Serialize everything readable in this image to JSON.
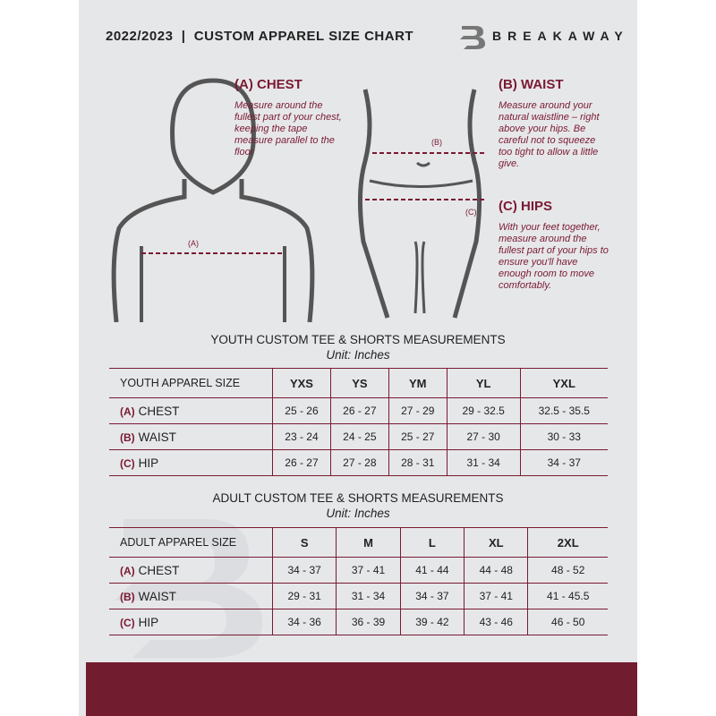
{
  "header": {
    "title": "2022/2023  |  CUSTOM APPAREL SIZE CHART",
    "brand": "BREAKAWAY"
  },
  "measures": {
    "chest": {
      "heading": "(A) CHEST",
      "text": "Measure around the fullest part of your chest, keeping the tape measure parallel to the floor",
      "marker": "(A)"
    },
    "waist": {
      "heading": "(B) WAIST",
      "text": "Measure around your natural waistline – right above your hips. Be careful not to squeeze too tight to allow a little give.",
      "marker": "(B)"
    },
    "hips": {
      "heading": "(C) HIPS",
      "text": "With your feet together, measure around the fullest part of your hips to ensure you'll have enough room to move comfortably.",
      "marker": "(C)"
    }
  },
  "youth": {
    "title": "YOUTH CUSTOM TEE & SHORTS MEASUREMENTS",
    "unit": "Unit: Inches",
    "header": "YOUTH APPAREL SIZE",
    "sizes": [
      "YXS",
      "YS",
      "YM",
      "YL",
      "YXL"
    ],
    "rows": [
      {
        "letter": "(A)",
        "name": "CHEST",
        "values": [
          "25 - 26",
          "26 - 27",
          "27 - 29",
          "29 - 32.5",
          "32.5 - 35.5"
        ]
      },
      {
        "letter": "(B)",
        "name": "WAIST",
        "values": [
          "23 - 24",
          "24 - 25",
          "25 - 27",
          "27 - 30",
          "30 - 33"
        ]
      },
      {
        "letter": "(C)",
        "name": "HIP",
        "values": [
          "26 - 27",
          "27 - 28",
          "28 - 31",
          "31 - 34",
          "34 - 37"
        ]
      }
    ]
  },
  "adult": {
    "title": "ADULT CUSTOM TEE & SHORTS MEASUREMENTS",
    "unit": "Unit: Inches",
    "header": "ADULT APPAREL SIZE",
    "sizes": [
      "S",
      "M",
      "L",
      "XL",
      "2XL"
    ],
    "rows": [
      {
        "letter": "(A)",
        "name": "CHEST",
        "values": [
          "34 - 37",
          "37 - 41",
          "41 - 44",
          "44 - 48",
          "48 - 52"
        ]
      },
      {
        "letter": "(B)",
        "name": "WAIST",
        "values": [
          "29 - 31",
          "31 - 34",
          "34 - 37",
          "37 - 41",
          "41 - 45.5"
        ]
      },
      {
        "letter": "(C)",
        "name": "HIP",
        "values": [
          "34 - 36",
          "36 - 39",
          "39 - 42",
          "43 - 46",
          "46 - 50"
        ]
      }
    ]
  },
  "colors": {
    "accent": "#7a1a32",
    "band": "#721c30",
    "background": "#e6e7e9"
  }
}
